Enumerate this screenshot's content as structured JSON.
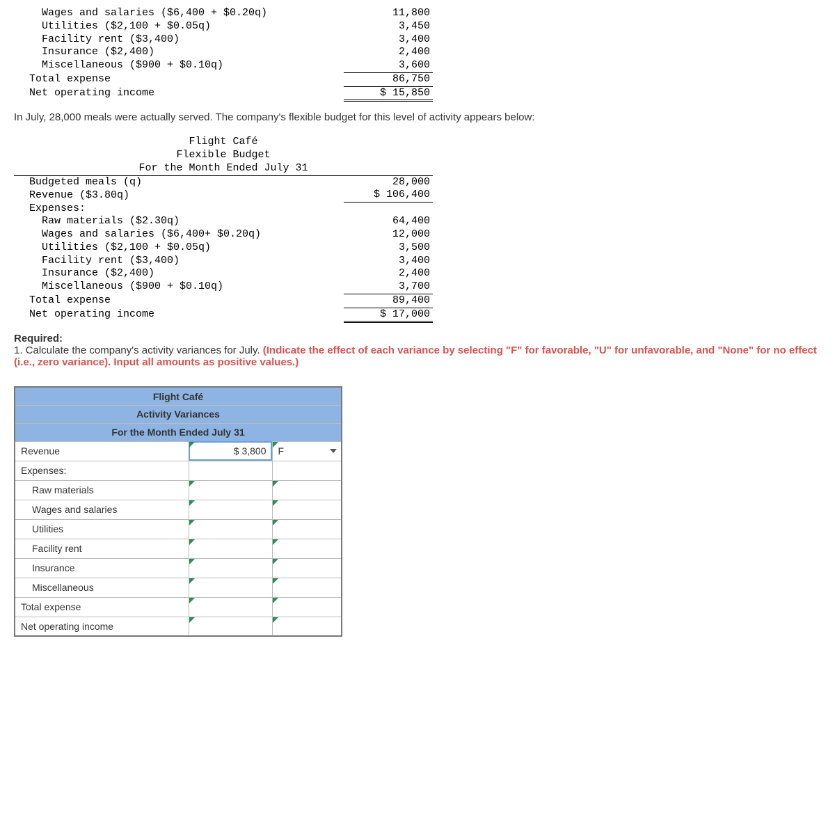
{
  "partial_budget": {
    "rows": [
      {
        "label": "Wages and salaries ($6,400 + $0.20q)",
        "value": "11,800",
        "indent": 2
      },
      {
        "label": "Utilities ($2,100 + $0.05q)",
        "value": "3,450",
        "indent": 2
      },
      {
        "label": "Facility rent ($3,400)",
        "value": "3,400",
        "indent": 2
      },
      {
        "label": "Insurance ($2,400)",
        "value": "2,400",
        "indent": 2
      },
      {
        "label": "Miscellaneous ($900 + $0.10q)",
        "value": "3,600",
        "indent": 2,
        "underline_after": true
      },
      {
        "label": "Total expense",
        "value": "86,750",
        "indent": 1,
        "underline_after": true
      },
      {
        "label": "Net operating income",
        "value": "$ 15,850",
        "indent": 1,
        "double_underline_after": true
      }
    ]
  },
  "narrative1": "In July, 28,000 meals were actually served. The company's flexible budget for this level of activity appears below:",
  "flex_budget": {
    "title1": "Flight Café",
    "title2": "Flexible Budget",
    "title3": "For the Month Ended July 31",
    "rows": [
      {
        "label": "Budgeted meals (q)",
        "value": "28,000",
        "indent": 1
      },
      {
        "label": "Revenue ($3.80q)",
        "value": "$ 106,400",
        "indent": 1,
        "underline_after": true
      },
      {
        "label": "Expenses:",
        "value": "",
        "indent": 1
      },
      {
        "label": "Raw materials ($2.30q)",
        "value": "64,400",
        "indent": 2
      },
      {
        "label": "Wages and salaries ($6,400+ $0.20q)",
        "value": "12,000",
        "indent": 2
      },
      {
        "label": "Utilities ($2,100 + $0.05q)",
        "value": "3,500",
        "indent": 2
      },
      {
        "label": "Facility rent ($3,400)",
        "value": "3,400",
        "indent": 2
      },
      {
        "label": "Insurance ($2,400)",
        "value": "2,400",
        "indent": 2
      },
      {
        "label": "Miscellaneous ($900 + $0.10q)",
        "value": "3,700",
        "indent": 2,
        "underline_after": true
      },
      {
        "label": "Total expense",
        "value": "89,400",
        "indent": 1,
        "underline_after": true
      },
      {
        "label": "Net operating income",
        "value": "$ 17,000",
        "indent": 1,
        "double_underline_after": true
      }
    ]
  },
  "required_heading": "Required:",
  "required_body_lead": "1. Calculate the company's activity variances for July. ",
  "required_red": "(Indicate the effect of each variance by selecting \"F\" for favorable, \"U\" for unfavorable, and \"None\" for no effect (i.e., zero variance). Input all amounts as positive values.)",
  "variance_table": {
    "title1": "Flight Café",
    "title2": "Activity Variances",
    "title3": "For the Month Ended July 31",
    "rows": [
      {
        "label": "Revenue",
        "indent": 0,
        "amount": "$         3,800",
        "flag": "F",
        "dropdown": true,
        "selected_amt": true
      },
      {
        "label": "Expenses:",
        "indent": 0,
        "amount": "",
        "flag": "",
        "plain": true
      },
      {
        "label": "Raw materials",
        "indent": 1,
        "amount": "",
        "flag": "",
        "editable": true
      },
      {
        "label": "Wages and salaries",
        "indent": 1,
        "amount": "",
        "flag": "",
        "editable": true
      },
      {
        "label": "Utilities",
        "indent": 1,
        "amount": "",
        "flag": "",
        "editable": true
      },
      {
        "label": "Facility rent",
        "indent": 1,
        "amount": "",
        "flag": "",
        "editable": true
      },
      {
        "label": "Insurance",
        "indent": 1,
        "amount": "",
        "flag": "",
        "editable": true
      },
      {
        "label": "Miscellaneous",
        "indent": 1,
        "amount": "",
        "flag": "",
        "editable": true
      },
      {
        "label": "Total expense",
        "indent": 0,
        "amount": "",
        "flag": "",
        "editable": true
      },
      {
        "label": "Net operating income",
        "indent": 0,
        "amount": "",
        "flag": "",
        "editable": true
      }
    ]
  },
  "colors": {
    "header_bg": "#8db4e2",
    "red": "#d9534f",
    "edit_hint": "#2e8b57"
  }
}
